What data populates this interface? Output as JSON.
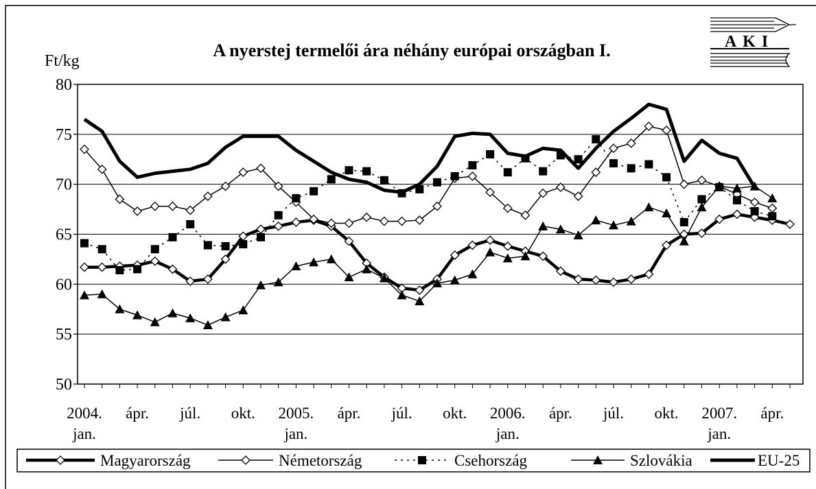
{
  "chart_data": {
    "type": "line",
    "title": "A nyerstej termelői ára néhány európai országban I.",
    "y_label": "Ft/kg",
    "logo_text": "AKI",
    "categories": [
      "2004.\njan.",
      null,
      null,
      "ápr.",
      null,
      null,
      "júl.",
      null,
      null,
      "okt.",
      null,
      null,
      "2005.\njan.",
      null,
      null,
      "ápr.",
      null,
      null,
      "júl.",
      null,
      null,
      "okt.",
      null,
      null,
      "2006.\njan.",
      null,
      null,
      "ápr.",
      null,
      null,
      "júl.",
      null,
      null,
      "okt.",
      null,
      null,
      "2007.\njan.",
      null,
      null,
      "ápr.",
      null
    ],
    "ylim": [
      50,
      80
    ],
    "yticks": [
      50,
      55,
      60,
      65,
      70,
      75,
      80
    ],
    "grid": true,
    "legend": "bottom",
    "series": [
      {
        "name": "Magyarország",
        "color": "#000000",
        "width": 4.5,
        "marker": "diamond",
        "dash": "none",
        "values": [
          61.7,
          61.7,
          61.8,
          61.9,
          62.3,
          61.5,
          60.3,
          60.5,
          62.5,
          64.8,
          65.5,
          65.8,
          66.2,
          66.4,
          65.8,
          64.3,
          62.1,
          60.7,
          59.6,
          59.4,
          60.5,
          62.9,
          63.9,
          64.4,
          63.8,
          63.3,
          62.8,
          61.3,
          60.5,
          60.4,
          60.2,
          60.5,
          61.0,
          63.9,
          65.0,
          65.1,
          66.5,
          67.0,
          66.7,
          66.4,
          66.0
        ]
      },
      {
        "name": "Németország",
        "color": "#000000",
        "width": 1.5,
        "marker": "diamond",
        "dash": "none",
        "values": [
          73.5,
          71.5,
          68.5,
          67.3,
          67.8,
          67.8,
          67.4,
          68.8,
          69.8,
          71.2,
          71.6,
          69.8,
          68.2,
          66.5,
          66.1,
          66.1,
          66.7,
          66.3,
          66.3,
          66.4,
          67.8,
          70.6,
          70.8,
          69.2,
          67.6,
          66.9,
          69.1,
          69.7,
          68.8,
          71.2,
          73.6,
          74.1,
          75.8,
          75.4,
          70.0,
          70.4,
          69.8,
          69.0,
          68.2,
          67.6,
          null
        ]
      },
      {
        "name": "Csehország",
        "color": "#000000",
        "width": 1.5,
        "marker": "square",
        "dash": "3,6",
        "values": [
          64.1,
          63.5,
          61.4,
          61.5,
          63.5,
          64.7,
          66.0,
          63.9,
          63.8,
          64.0,
          64.7,
          66.9,
          68.6,
          69.3,
          70.5,
          71.4,
          71.3,
          70.4,
          69.1,
          69.5,
          70.2,
          70.8,
          71.9,
          73.0,
          71.2,
          72.6,
          71.3,
          72.9,
          72.5,
          74.5,
          72.1,
          71.6,
          72.0,
          70.7,
          66.2,
          68.5,
          69.7,
          68.4,
          67.3,
          66.8,
          null
        ]
      },
      {
        "name": "Szlovákia",
        "color": "#000000",
        "width": 1.5,
        "marker": "triangle",
        "dash": "none",
        "values": [
          58.9,
          59.0,
          57.5,
          56.9,
          56.2,
          57.1,
          56.6,
          55.9,
          56.7,
          57.4,
          59.9,
          60.2,
          61.8,
          62.2,
          62.5,
          60.7,
          61.5,
          60.6,
          58.9,
          58.3,
          60.1,
          60.4,
          61.0,
          63.2,
          62.6,
          62.8,
          65.8,
          65.5,
          64.9,
          66.4,
          65.9,
          66.3,
          67.7,
          67.1,
          64.3,
          67.7,
          69.8,
          69.6,
          69.8,
          68.6,
          null
        ]
      },
      {
        "name": "EU-25",
        "color": "#000000",
        "width": 5,
        "marker": "none",
        "dash": "none",
        "values": [
          76.5,
          75.3,
          72.3,
          70.7,
          71.1,
          71.3,
          71.5,
          72.1,
          73.7,
          74.8,
          74.8,
          74.8,
          73.4,
          72.3,
          71.2,
          70.5,
          70.2,
          69.4,
          69.2,
          70.0,
          71.8,
          74.8,
          75.1,
          75.0,
          73.1,
          72.8,
          73.6,
          73.4,
          71.6,
          73.6,
          75.3,
          76.6,
          78.0,
          77.5,
          72.3,
          74.4,
          73.1,
          72.6,
          69.7,
          null,
          null
        ]
      }
    ]
  }
}
